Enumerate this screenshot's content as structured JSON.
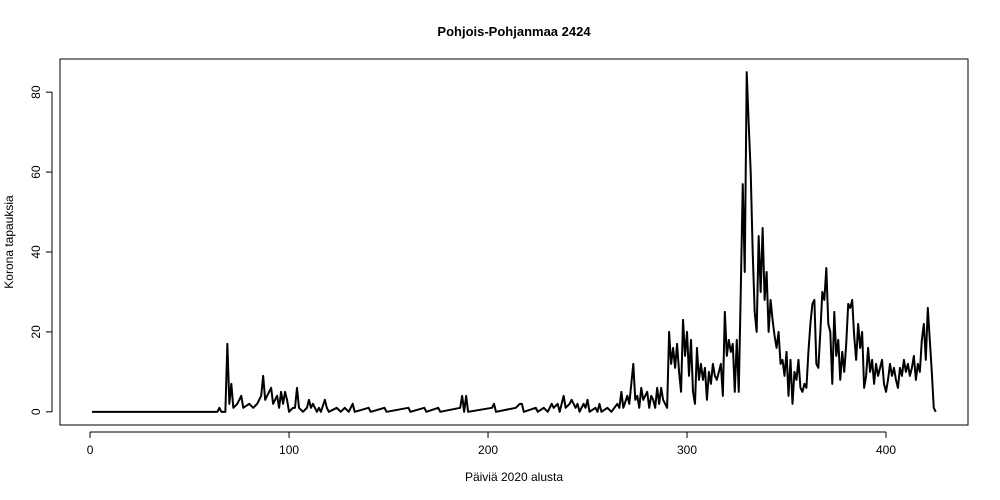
{
  "chart_data": {
    "type": "line",
    "title": "Pohjois-Pohjanmaa 2424",
    "x_label": "Päiviä 2020 alusta",
    "y_label": "Korona tapauksia",
    "color": "#000000",
    "x": [
      1,
      64,
      65,
      66,
      68,
      69,
      70,
      71,
      72,
      74,
      76,
      77,
      80,
      82,
      84,
      86,
      87,
      88,
      90,
      91,
      92,
      94,
      95,
      96,
      97,
      98,
      99,
      100,
      102,
      103,
      104,
      105,
      107,
      109,
      110,
      111,
      112,
      114,
      115,
      116,
      118,
      119,
      120,
      124,
      126,
      128,
      130,
      132,
      133,
      140,
      141,
      148,
      149,
      160,
      161,
      168,
      169,
      175,
      176,
      186,
      187,
      188,
      189,
      190,
      202,
      203,
      204,
      214,
      216,
      217,
      218,
      224,
      225,
      228,
      230,
      232,
      233,
      235,
      236,
      238,
      239,
      241,
      242,
      244,
      245,
      246,
      248,
      249,
      250,
      251,
      254,
      255,
      256,
      257,
      260,
      262,
      265,
      266,
      267,
      268,
      270,
      271,
      273,
      274,
      275,
      276,
      277,
      278,
      280,
      281,
      282,
      283,
      284,
      285,
      286,
      287,
      288,
      289,
      290,
      291,
      292,
      293,
      294,
      295,
      296,
      297,
      298,
      299,
      300,
      301,
      302,
      303,
      304,
      305,
      306,
      307,
      308,
      309,
      310,
      311,
      312,
      313,
      314,
      315,
      316,
      317,
      318,
      319,
      320,
      321,
      322,
      323,
      324,
      325,
      326,
      327,
      328,
      329,
      330,
      331,
      332,
      333,
      334,
      335,
      336,
      337,
      338,
      339,
      340,
      341,
      342,
      343,
      344,
      345,
      346,
      347,
      348,
      349,
      350,
      351,
      352,
      353,
      354,
      355,
      356,
      357,
      358,
      359,
      360,
      361,
      362,
      363,
      364,
      365,
      366,
      367,
      368,
      369,
      370,
      371,
      372,
      373,
      374,
      375,
      376,
      377,
      378,
      379,
      380,
      381,
      382,
      383,
      384,
      385,
      386,
      387,
      388,
      389,
      390,
      391,
      392,
      393,
      394,
      395,
      396,
      397,
      398,
      399,
      400,
      401,
      402,
      403,
      404,
      405,
      406,
      407,
      408,
      409,
      410,
      411,
      412,
      413,
      414,
      415,
      416,
      417,
      418,
      419,
      420,
      421,
      422,
      423,
      424,
      425
    ],
    "values": [
      0,
      0,
      1,
      0,
      0,
      17,
      2,
      7,
      1,
      2,
      4,
      1,
      2,
      1,
      2,
      4,
      9,
      3,
      5,
      6,
      2,
      4,
      1,
      5,
      2,
      5,
      3,
      0,
      1,
      1,
      6,
      1,
      0,
      1,
      3,
      1,
      2,
      0,
      1,
      0,
      3,
      1,
      0,
      1,
      0,
      1,
      0,
      2,
      0,
      1,
      0,
      1,
      0,
      1,
      0,
      1,
      0,
      1,
      0,
      1,
      4,
      0,
      4,
      0,
      1,
      2,
      0,
      1,
      2,
      2,
      0,
      1,
      0,
      1,
      0,
      2,
      1,
      2,
      0,
      4,
      1,
      2,
      3,
      1,
      2,
      0,
      2,
      1,
      3,
      0,
      1,
      0,
      2,
      0,
      1,
      0,
      2,
      1,
      5,
      1,
      4,
      2,
      12,
      3,
      4,
      1,
      6,
      3,
      5,
      1,
      4,
      3,
      1,
      6,
      2,
      6,
      3,
      2,
      1,
      20,
      12,
      16,
      11,
      17,
      10,
      5,
      23,
      14,
      20,
      9,
      18,
      5,
      2,
      16,
      8,
      12,
      8,
      11,
      3,
      10,
      7,
      12,
      9,
      8,
      10,
      12,
      4,
      25,
      14,
      18,
      15,
      17,
      5,
      18,
      5,
      30,
      57,
      35,
      85,
      72,
      60,
      40,
      25,
      20,
      44,
      30,
      46,
      28,
      35,
      20,
      28,
      23,
      19,
      16,
      20,
      12,
      13,
      9,
      15,
      4,
      13,
      2,
      10,
      8,
      13,
      6,
      5,
      7,
      6,
      15,
      22,
      27,
      28,
      12,
      11,
      20,
      30,
      28,
      36,
      22,
      20,
      7,
      25,
      14,
      18,
      8,
      15,
      10,
      17,
      27,
      26,
      28,
      19,
      13,
      22,
      16,
      20,
      6,
      9,
      16,
      10,
      13,
      7,
      12,
      9,
      11,
      13,
      7,
      5,
      8,
      12,
      9,
      11,
      8,
      6,
      11,
      9,
      13,
      10,
      12,
      9,
      11,
      14,
      8,
      12,
      10,
      18,
      22,
      13,
      26,
      18,
      10,
      1,
      0
    ],
    "xlim": [
      -15.1,
      441.2
    ],
    "ylim": [
      -3.3,
      88.3
    ],
    "xticks": [
      0,
      100,
      200,
      300,
      400
    ],
    "yticks": [
      0,
      20,
      40,
      60,
      80
    ]
  }
}
